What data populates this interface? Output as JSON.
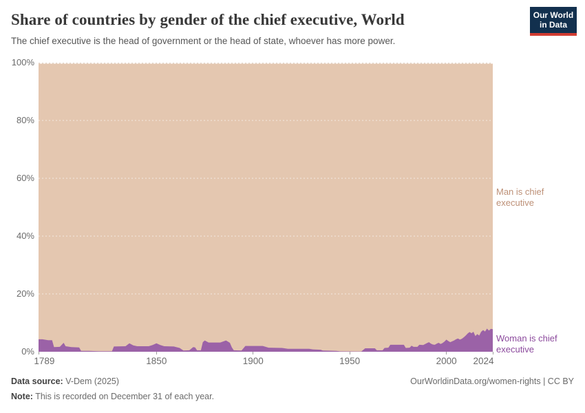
{
  "header": {
    "title": "Share of countries by gender of the chief executive, World",
    "subtitle": "The chief executive is the head of government or the head of state, whoever has more power.",
    "logo": {
      "line1": "Our World",
      "line2": "in Data",
      "bg_color": "#12304e",
      "accent_color": "#d13c32"
    }
  },
  "chart_data": {
    "type": "area",
    "stacked": true,
    "unit": "%",
    "xlim": [
      1789,
      2024
    ],
    "ylim": [
      0,
      100
    ],
    "grid": true,
    "legend_position": "right-edge-labels",
    "x_ticks": [
      1789,
      1850,
      1900,
      1950,
      2000,
      2024
    ],
    "y_ticks": [
      0,
      20,
      40,
      60,
      80,
      100
    ],
    "y_tick_suffix": "%",
    "series": [
      {
        "name": "Woman is chief executive",
        "color": "#9b62a7",
        "label_color": "#8c4a9d",
        "points": [
          [
            1789,
            4.3
          ],
          [
            1791,
            4.3
          ],
          [
            1794,
            4.0
          ],
          [
            1796,
            4.0
          ],
          [
            1797,
            1.6
          ],
          [
            1800,
            1.7
          ],
          [
            1802,
            3.1
          ],
          [
            1803,
            1.9
          ],
          [
            1806,
            1.6
          ],
          [
            1810,
            1.5
          ],
          [
            1811,
            0.3
          ],
          [
            1815,
            0.3
          ],
          [
            1820,
            0.2
          ],
          [
            1827,
            0.2
          ],
          [
            1828,
            1.8
          ],
          [
            1834,
            1.9
          ],
          [
            1836,
            2.9
          ],
          [
            1838,
            2.2
          ],
          [
            1840,
            1.9
          ],
          [
            1846,
            1.9
          ],
          [
            1848,
            2.3
          ],
          [
            1850,
            2.9
          ],
          [
            1852,
            2.3
          ],
          [
            1854,
            1.9
          ],
          [
            1859,
            1.8
          ],
          [
            1862,
            1.3
          ],
          [
            1864,
            0.4
          ],
          [
            1867,
            0.5
          ],
          [
            1869,
            1.6
          ],
          [
            1870,
            1.5
          ],
          [
            1871,
            0.5
          ],
          [
            1873,
            0.5
          ],
          [
            1874,
            3.3
          ],
          [
            1875,
            3.9
          ],
          [
            1877,
            3.2
          ],
          [
            1883,
            3.2
          ],
          [
            1886,
            3.9
          ],
          [
            1888,
            3.1
          ],
          [
            1889,
            1.5
          ],
          [
            1890,
            0.5
          ],
          [
            1894,
            0.4
          ],
          [
            1896,
            2.0
          ],
          [
            1905,
            2.0
          ],
          [
            1908,
            1.4
          ],
          [
            1915,
            1.3
          ],
          [
            1918,
            1.0
          ],
          [
            1929,
            1.0
          ],
          [
            1931,
            0.8
          ],
          [
            1935,
            0.7
          ],
          [
            1936,
            0.4
          ],
          [
            1943,
            0.3
          ],
          [
            1945,
            0.15
          ],
          [
            1956,
            0.1
          ],
          [
            1958,
            1.2
          ],
          [
            1963,
            1.2
          ],
          [
            1964,
            0.5
          ],
          [
            1967,
            0.5
          ],
          [
            1968,
            1.3
          ],
          [
            1970,
            1.4
          ],
          [
            1971,
            2.4
          ],
          [
            1978,
            2.4
          ],
          [
            1979,
            1.3
          ],
          [
            1981,
            1.4
          ],
          [
            1982,
            2.1
          ],
          [
            1983,
            1.7
          ],
          [
            1985,
            1.7
          ],
          [
            1986,
            2.4
          ],
          [
            1988,
            2.3
          ],
          [
            1990,
            3.0
          ],
          [
            1991,
            3.3
          ],
          [
            1992,
            2.8
          ],
          [
            1993,
            2.5
          ],
          [
            1994,
            2.4
          ],
          [
            1995,
            2.8
          ],
          [
            1996,
            3.1
          ],
          [
            1997,
            2.7
          ],
          [
            1998,
            3.0
          ],
          [
            1999,
            3.5
          ],
          [
            2000,
            4.2
          ],
          [
            2001,
            3.7
          ],
          [
            2002,
            3.3
          ],
          [
            2003,
            3.6
          ],
          [
            2004,
            3.9
          ],
          [
            2005,
            4.3
          ],
          [
            2006,
            4.6
          ],
          [
            2007,
            4.2
          ],
          [
            2008,
            4.5
          ],
          [
            2009,
            5.0
          ],
          [
            2010,
            5.6
          ],
          [
            2011,
            6.3
          ],
          [
            2012,
            6.8
          ],
          [
            2013,
            6.4
          ],
          [
            2014,
            6.9
          ],
          [
            2015,
            5.4
          ],
          [
            2016,
            6.1
          ],
          [
            2017,
            5.6
          ],
          [
            2018,
            6.9
          ],
          [
            2019,
            7.5
          ],
          [
            2020,
            7.0
          ],
          [
            2021,
            8.0
          ],
          [
            2022,
            7.3
          ],
          [
            2023,
            7.9
          ],
          [
            2024,
            7.8
          ]
        ]
      },
      {
        "name": "Man is chief executive",
        "color": "#e4c7b0",
        "label_color": "#bd9077",
        "stacking": "remainder to 100%"
      }
    ]
  },
  "footer": {
    "source_label": "Data source:",
    "source_value": "V-Dem (2025)",
    "attribution": "OurWorldinData.org/women-rights | CC BY",
    "note_label": "Note:",
    "note_value": "This is recorded on December 31 of each year."
  }
}
